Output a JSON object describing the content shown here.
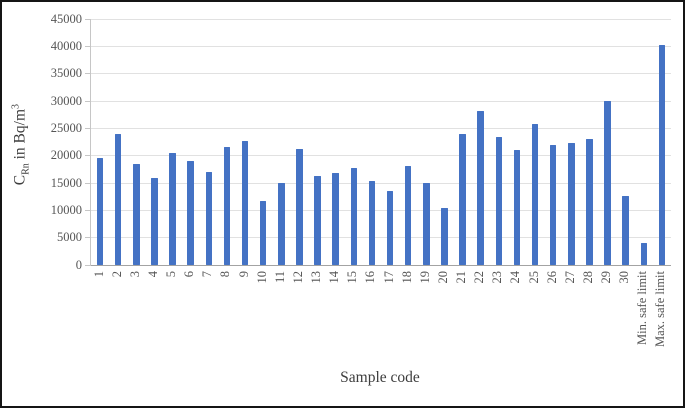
{
  "axis_titles": {
    "y_main": "C",
    "y_sub": "Rn",
    "y_rest": " in Bq/m",
    "y_sup": "3",
    "x": "Sample code"
  },
  "chart_data": {
    "type": "bar",
    "title": "",
    "xlabel": "Sample code",
    "ylabel": "C_Rn in Bq/m^3",
    "categories": [
      "1",
      "2",
      "3",
      "4",
      "5",
      "6",
      "7",
      "8",
      "9",
      "10",
      "11",
      "12",
      "13",
      "14",
      "15",
      "16",
      "17",
      "18",
      "19",
      "20",
      "21",
      "22",
      "23",
      "24",
      "25",
      "26",
      "27",
      "28",
      "29",
      "30",
      "Min. safe limit",
      "Max. safe limit"
    ],
    "values": [
      19500,
      23900,
      18400,
      16000,
      20500,
      19000,
      17000,
      21600,
      22700,
      11700,
      15100,
      21300,
      16300,
      16900,
      17800,
      15400,
      13600,
      18200,
      15000,
      10500,
      23900,
      28200,
      23500,
      21000,
      25800,
      21900,
      22400,
      23000,
      30100,
      12700,
      4000,
      40200
    ],
    "ylim": [
      0,
      45000
    ],
    "yticks": [
      0,
      5000,
      10000,
      15000,
      20000,
      25000,
      30000,
      35000,
      40000,
      45000
    ],
    "grid": true,
    "legend": "none",
    "bar_color": "#4472C4",
    "gridline_color": "#e1e1e1",
    "axis_line_color": "#a3a3a3",
    "tick_label_color": "#555555",
    "axis_title_color": "#3d3d3d"
  }
}
